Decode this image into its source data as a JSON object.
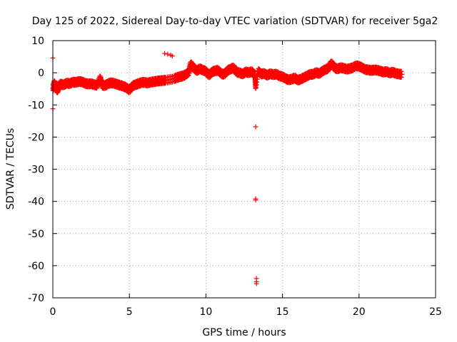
{
  "chart_data": {
    "type": "scatter",
    "title": "Day 125 of 2022, Sidereal Day-to-day VTEC variation (SDTVAR) for receiver 5ga2",
    "xlabel": "GPS time / hours",
    "ylabel": "SDTVAR / TECUs",
    "xlim": [
      0,
      25
    ],
    "ylim": [
      -70,
      10
    ],
    "xticks": [
      0,
      5,
      10,
      15,
      20,
      25
    ],
    "yticks": [
      -70,
      -60,
      -50,
      -40,
      -30,
      -20,
      -10,
      0,
      10
    ],
    "grid": true,
    "marker": "+",
    "color": "#ff0000",
    "series": [
      {
        "name": "SDTVAR",
        "points": [
          [
            0.0,
            4.6
          ],
          [
            0.0,
            -11.2
          ],
          [
            0.0,
            -5.0
          ],
          [
            0.1,
            -3.2
          ],
          [
            0.2,
            -4.5
          ],
          [
            0.3,
            -5.5
          ],
          [
            0.4,
            -4.0
          ],
          [
            0.5,
            -3.5
          ],
          [
            0.7,
            -3.8
          ],
          [
            0.9,
            -3.2
          ],
          [
            1.1,
            -3.4
          ],
          [
            1.3,
            -2.9
          ],
          [
            1.5,
            -3.0
          ],
          [
            1.7,
            -2.7
          ],
          [
            1.9,
            -2.8
          ],
          [
            2.1,
            -3.3
          ],
          [
            2.3,
            -3.5
          ],
          [
            2.5,
            -3.4
          ],
          [
            2.7,
            -3.7
          ],
          [
            2.9,
            -3.9
          ],
          [
            3.1,
            -1.6
          ],
          [
            3.2,
            -3.8
          ],
          [
            3.4,
            -4.0
          ],
          [
            3.6,
            -3.4
          ],
          [
            3.8,
            -3.1
          ],
          [
            4.0,
            -3.3
          ],
          [
            4.2,
            -3.6
          ],
          [
            4.4,
            -3.9
          ],
          [
            4.6,
            -4.2
          ],
          [
            4.8,
            -4.6
          ],
          [
            5.0,
            -5.4
          ],
          [
            5.2,
            -4.1
          ],
          [
            5.4,
            -3.7
          ],
          [
            5.6,
            -3.4
          ],
          [
            5.8,
            -3.0
          ],
          [
            6.0,
            -3.0
          ],
          [
            6.2,
            -3.2
          ],
          [
            6.4,
            -2.9
          ],
          [
            6.6,
            -2.8
          ],
          [
            6.8,
            -2.6
          ],
          [
            7.0,
            -2.5
          ],
          [
            7.2,
            -2.4
          ],
          [
            7.4,
            -2.3
          ],
          [
            7.3,
            6.0
          ],
          [
            7.5,
            5.8
          ],
          [
            7.7,
            5.5
          ],
          [
            7.8,
            5.2
          ],
          [
            7.9,
            -1.9
          ],
          [
            8.1,
            -1.5
          ],
          [
            8.3,
            -1.2
          ],
          [
            8.5,
            -1.0
          ],
          [
            8.7,
            -0.5
          ],
          [
            8.9,
            0.3
          ],
          [
            9.0,
            2.7
          ],
          [
            9.2,
            1.6
          ],
          [
            9.4,
            0.6
          ],
          [
            9.6,
            1.3
          ],
          [
            9.8,
            0.8
          ],
          [
            10.0,
            0.5
          ],
          [
            10.2,
            -0.8
          ],
          [
            10.4,
            0.3
          ],
          [
            10.6,
            0.6
          ],
          [
            10.8,
            0.8
          ],
          [
            11.0,
            -0.3
          ],
          [
            11.2,
            -0.5
          ],
          [
            11.4,
            0.7
          ],
          [
            11.6,
            1.1
          ],
          [
            11.8,
            1.6
          ],
          [
            12.0,
            0.2
          ],
          [
            12.2,
            0.0
          ],
          [
            12.4,
            -0.4
          ],
          [
            12.6,
            0.3
          ],
          [
            12.8,
            0.0
          ],
          [
            13.0,
            0.4
          ],
          [
            13.2,
            -0.8
          ],
          [
            13.25,
            -4.6
          ],
          [
            13.25,
            -16.8
          ],
          [
            13.25,
            -39.2
          ],
          [
            13.25,
            -39.6
          ],
          [
            13.3,
            -64.0
          ],
          [
            13.3,
            -65.0
          ],
          [
            13.3,
            -65.6
          ],
          [
            13.4,
            0.6
          ],
          [
            13.6,
            -0.4
          ],
          [
            13.8,
            -0.2
          ],
          [
            14.0,
            -0.8
          ],
          [
            14.2,
            -0.3
          ],
          [
            14.4,
            -0.6
          ],
          [
            14.6,
            -0.4
          ],
          [
            14.8,
            -1.0
          ],
          [
            15.0,
            -1.2
          ],
          [
            15.2,
            -1.8
          ],
          [
            15.4,
            -2.2
          ],
          [
            15.6,
            -2.0
          ],
          [
            15.8,
            -1.6
          ],
          [
            16.0,
            -2.3
          ],
          [
            16.2,
            -2.0
          ],
          [
            16.4,
            -1.5
          ],
          [
            16.6,
            -1.0
          ],
          [
            16.8,
            -0.5
          ],
          [
            17.0,
            -0.5
          ],
          [
            17.2,
            0.1
          ],
          [
            17.4,
            -0.3
          ],
          [
            17.6,
            0.5
          ],
          [
            17.8,
            1.0
          ],
          [
            18.0,
            1.4
          ],
          [
            18.2,
            3.0
          ],
          [
            18.4,
            1.5
          ],
          [
            18.6,
            1.2
          ],
          [
            18.8,
            1.6
          ],
          [
            19.0,
            1.4
          ],
          [
            19.2,
            1.1
          ],
          [
            19.4,
            1.3
          ],
          [
            19.6,
            1.6
          ],
          [
            19.8,
            2.2
          ],
          [
            20.0,
            2.0
          ],
          [
            20.2,
            1.6
          ],
          [
            20.4,
            1.0
          ],
          [
            20.6,
            0.9
          ],
          [
            20.8,
            0.7
          ],
          [
            21.0,
            0.9
          ],
          [
            21.2,
            0.8
          ],
          [
            21.4,
            0.5
          ],
          [
            21.6,
            0.2
          ],
          [
            21.8,
            0.4
          ],
          [
            22.0,
            -0.1
          ],
          [
            22.2,
            0.2
          ],
          [
            22.4,
            -0.2
          ],
          [
            22.6,
            -0.4
          ],
          [
            22.8,
            -0.5
          ]
        ]
      }
    ]
  }
}
